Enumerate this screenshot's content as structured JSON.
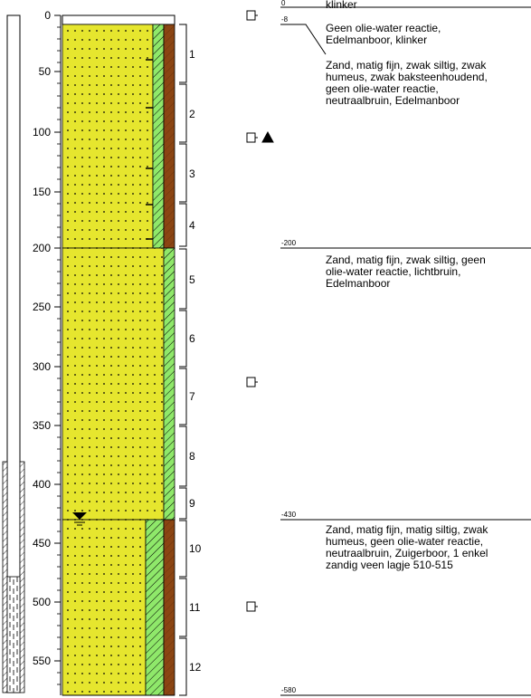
{
  "depth_axis": {
    "ticks": [
      "50",
      "100",
      "150",
      "200",
      "250",
      "300",
      "350",
      "400",
      "450",
      "500",
      "550"
    ],
    "zero": "0"
  },
  "samples": [
    "1",
    "2",
    "3",
    "4",
    "5",
    "6",
    "7",
    "8",
    "9",
    "10",
    "11",
    "12"
  ],
  "layers": [
    {
      "top_label": "0",
      "bottom_label": "-8",
      "description": "klinker"
    },
    {
      "top_label": "-8",
      "bottom_label": "",
      "description": "Geen olie-water reactie,\nEdelmanboor, klinker"
    },
    {
      "top_label": "",
      "bottom_label": "-200",
      "description": "Zand, matig fijn, zwak siltig, zwak\nhumeus, zwak baksteenhoudend,\ngeen olie-water reactie,\nneutraalbruin, Edelmanboor"
    },
    {
      "top_label": "-200",
      "bottom_label": "-430",
      "description": "Zand, matig fijn, zwak siltig, geen\nolie-water reactie, lichtbruin,\nEdelmanboor"
    },
    {
      "top_label": "-430",
      "bottom_label": "-580",
      "description": "Zand, matig fijn, matig siltig, zwak\nhumeus, geen olie-water reactie,\nneutraalbruin, Zuigerboor, 1 enkel\nzandig veen lagje 510-515"
    }
  ],
  "colors": {
    "sand": "#e6e62e",
    "green": "#8fe86a",
    "brown": "#8b4513"
  },
  "icons": {
    "sample_marker": "square-sample-icon",
    "sample_marker_flag": "triangle-icon",
    "groundwater": "water-level-triangle-icon"
  }
}
